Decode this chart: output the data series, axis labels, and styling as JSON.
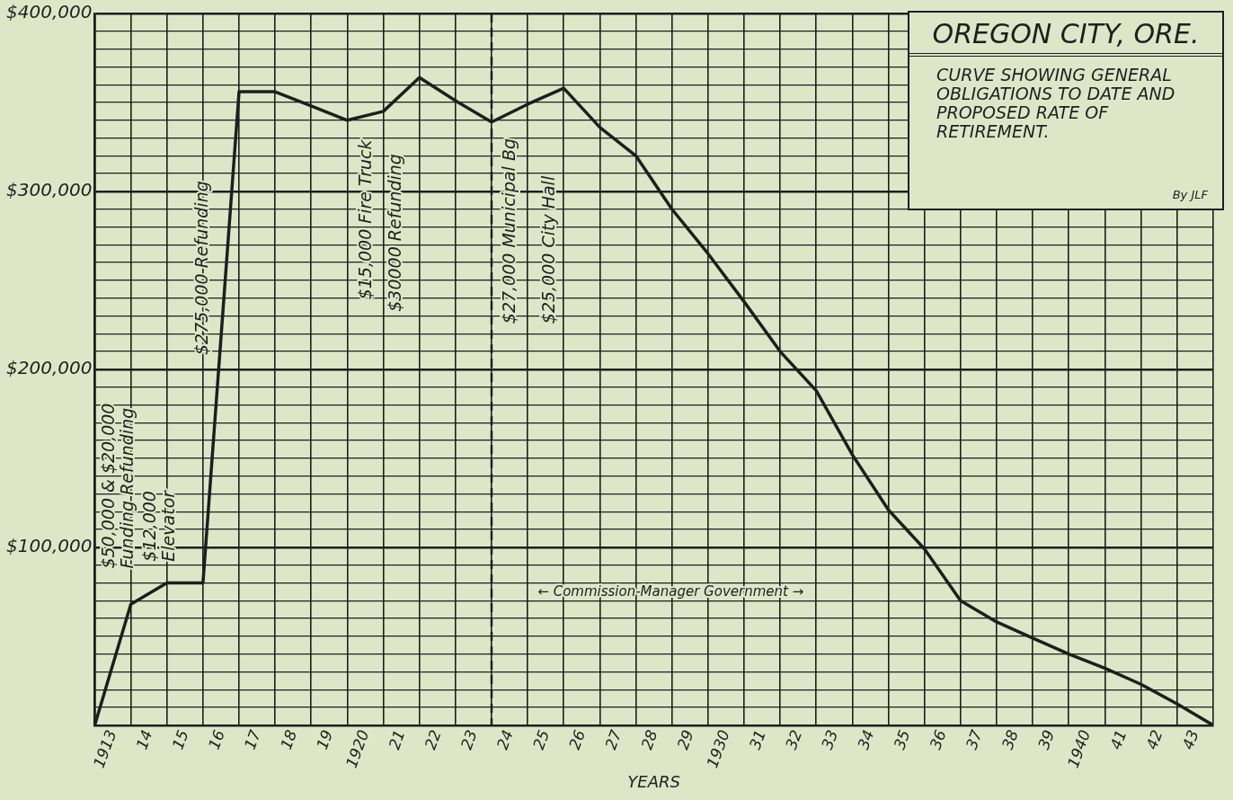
{
  "chart_data": {
    "type": "line",
    "title": "OREGON CITY, ORE.",
    "subtitle": "CURVE SHOWING GENERAL OBLIGATIONS TO DATE AND PROPOSED RATE OF RETIREMENT.",
    "xlabel": "YEARS",
    "x": [
      1912.5,
      1913.5,
      1914.5,
      1915.5,
      1916.5,
      1917.5,
      1918.5,
      1919.5,
      1920.5,
      1921.5,
      1922.5,
      1923.5,
      1924.5,
      1925.5,
      1926.5,
      1927.5,
      1928.5,
      1929.5,
      1930.5,
      1931.5,
      1932.5,
      1933.5,
      1934.5,
      1935.5,
      1936.5,
      1937.5,
      1938.5,
      1939.5,
      1940.5,
      1941.5,
      1942.5,
      1943.5
    ],
    "series": [
      {
        "color": "#1e1e1e",
        "values": [
          0,
          68000,
          80000,
          80000,
          356000,
          356000,
          348000,
          340000,
          345000,
          364000,
          351000,
          339000,
          349000,
          358000,
          336000,
          320000,
          290000,
          265000,
          238000,
          210000,
          188000,
          152000,
          121000,
          99000,
          70000,
          58000,
          49000,
          40000,
          32000,
          23000,
          12000,
          0
        ]
      }
    ],
    "xlim": [
      1912.5,
      1943.5
    ],
    "xticks": [
      {
        "value": 1912.5,
        "label": null
      },
      {
        "value": 1913,
        "label": "1913"
      },
      {
        "value": 1913.5,
        "label": null
      },
      {
        "value": 1914,
        "label": "14"
      },
      {
        "value": 1914.5,
        "label": null
      },
      {
        "value": 1915,
        "label": "15"
      },
      {
        "value": 1915.5,
        "label": null
      },
      {
        "value": 1916,
        "label": "16"
      },
      {
        "value": 1916.5,
        "label": null
      },
      {
        "value": 1917,
        "label": "17"
      },
      {
        "value": 1917.5,
        "label": null
      },
      {
        "value": 1918,
        "label": "18"
      },
      {
        "value": 1918.5,
        "label": null
      },
      {
        "value": 1919,
        "label": "19"
      },
      {
        "value": 1919.5,
        "label": null
      },
      {
        "value": 1920,
        "label": "1920"
      },
      {
        "value": 1920.5,
        "label": null
      },
      {
        "value": 1921,
        "label": "21"
      },
      {
        "value": 1921.5,
        "label": null
      },
      {
        "value": 1922,
        "label": "22"
      },
      {
        "value": 1922.5,
        "label": null
      },
      {
        "value": 1923,
        "label": "23"
      },
      {
        "value": 1923.5,
        "label": null
      },
      {
        "value": 1924,
        "label": "24"
      },
      {
        "value": 1924.5,
        "label": null
      },
      {
        "value": 1925,
        "label": "25"
      },
      {
        "value": 1925.5,
        "label": null
      },
      {
        "value": 1926,
        "label": "26"
      },
      {
        "value": 1926.5,
        "label": null
      },
      {
        "value": 1927,
        "label": "27"
      },
      {
        "value": 1927.5,
        "label": null
      },
      {
        "value": 1928,
        "label": "28"
      },
      {
        "value": 1928.5,
        "label": null
      },
      {
        "value": 1929,
        "label": "29"
      },
      {
        "value": 1929.5,
        "label": null
      },
      {
        "value": 1930,
        "label": "1930"
      },
      {
        "value": 1930.5,
        "label": null
      },
      {
        "value": 1931,
        "label": "31"
      },
      {
        "value": 1931.5,
        "label": null
      },
      {
        "value": 1932,
        "label": "32"
      },
      {
        "value": 1932.5,
        "label": null
      },
      {
        "value": 1933,
        "label": "33"
      },
      {
        "value": 1933.5,
        "label": null
      },
      {
        "value": 1934,
        "label": "34"
      },
      {
        "value": 1934.5,
        "label": null
      },
      {
        "value": 1935,
        "label": "35"
      },
      {
        "value": 1935.5,
        "label": null
      },
      {
        "value": 1936,
        "label": "36"
      },
      {
        "value": 1936.5,
        "label": null
      },
      {
        "value": 1937,
        "label": "37"
      },
      {
        "value": 1937.5,
        "label": null
      },
      {
        "value": 1938,
        "label": "38"
      },
      {
        "value": 1938.5,
        "label": null
      },
      {
        "value": 1939,
        "label": "39"
      },
      {
        "value": 1939.5,
        "label": null
      },
      {
        "value": 1940,
        "label": "1940"
      },
      {
        "value": 1940.5,
        "label": null
      },
      {
        "value": 1941,
        "label": "41"
      },
      {
        "value": 1941.5,
        "label": null
      },
      {
        "value": 1942,
        "label": "42"
      },
      {
        "value": 1942.5,
        "label": null
      },
      {
        "value": 1943,
        "label": "43"
      },
      {
        "value": 1943.5,
        "label": null
      }
    ],
    "ylim": [
      0,
      400000
    ],
    "yticks": [
      {
        "value": 0,
        "label": null
      },
      {
        "value": 10000,
        "label": null
      },
      {
        "value": 20000,
        "label": null
      },
      {
        "value": 30000,
        "label": null
      },
      {
        "value": 40000,
        "label": null
      },
      {
        "value": 50000,
        "label": null
      },
      {
        "value": 60000,
        "label": null
      },
      {
        "value": 70000,
        "label": null
      },
      {
        "value": 80000,
        "label": null
      },
      {
        "value": 90000,
        "label": null
      },
      {
        "value": 100000,
        "label": "$100,000"
      },
      {
        "value": 110000,
        "label": null
      },
      {
        "value": 120000,
        "label": null
      },
      {
        "value": 130000,
        "label": null
      },
      {
        "value": 140000,
        "label": null
      },
      {
        "value": 150000,
        "label": null
      },
      {
        "value": 160000,
        "label": null
      },
      {
        "value": 170000,
        "label": null
      },
      {
        "value": 180000,
        "label": null
      },
      {
        "value": 190000,
        "label": null
      },
      {
        "value": 200000,
        "label": "$200,000"
      },
      {
        "value": 210000,
        "label": null
      },
      {
        "value": 220000,
        "label": null
      },
      {
        "value": 230000,
        "label": null
      },
      {
        "value": 240000,
        "label": null
      },
      {
        "value": 250000,
        "label": null
      },
      {
        "value": 260000,
        "label": null
      },
      {
        "value": 270000,
        "label": null
      },
      {
        "value": 280000,
        "label": null
      },
      {
        "value": 290000,
        "label": null
      },
      {
        "value": 300000,
        "label": "$300,000"
      },
      {
        "value": 310000,
        "label": null
      },
      {
        "value": 320000,
        "label": null
      },
      {
        "value": 330000,
        "label": null
      },
      {
        "value": 340000,
        "label": null
      },
      {
        "value": 350000,
        "label": null
      },
      {
        "value": 360000,
        "label": null
      },
      {
        "value": 370000,
        "label": null
      },
      {
        "value": 380000,
        "label": null
      },
      {
        "value": 390000,
        "label": null
      },
      {
        "value": 400000,
        "label": "$400,000"
      }
    ],
    "grid": true,
    "ref_lines": [
      {
        "axis": "x",
        "value": 1923.5,
        "line_style": "dashed",
        "color": "#1e1e1e"
      }
    ],
    "annotations": [
      "$50,000 & $20,000\nFunding Refunding",
      "$12,000\nElevator",
      "$275,000 Refunding",
      "$15,000 Fire Truck",
      "$30000 Refunding",
      "$27,000 Municipal Bg",
      "$25,000 City Hall",
      "← Commission-Manager Government →",
      "By JLF"
    ]
  }
}
